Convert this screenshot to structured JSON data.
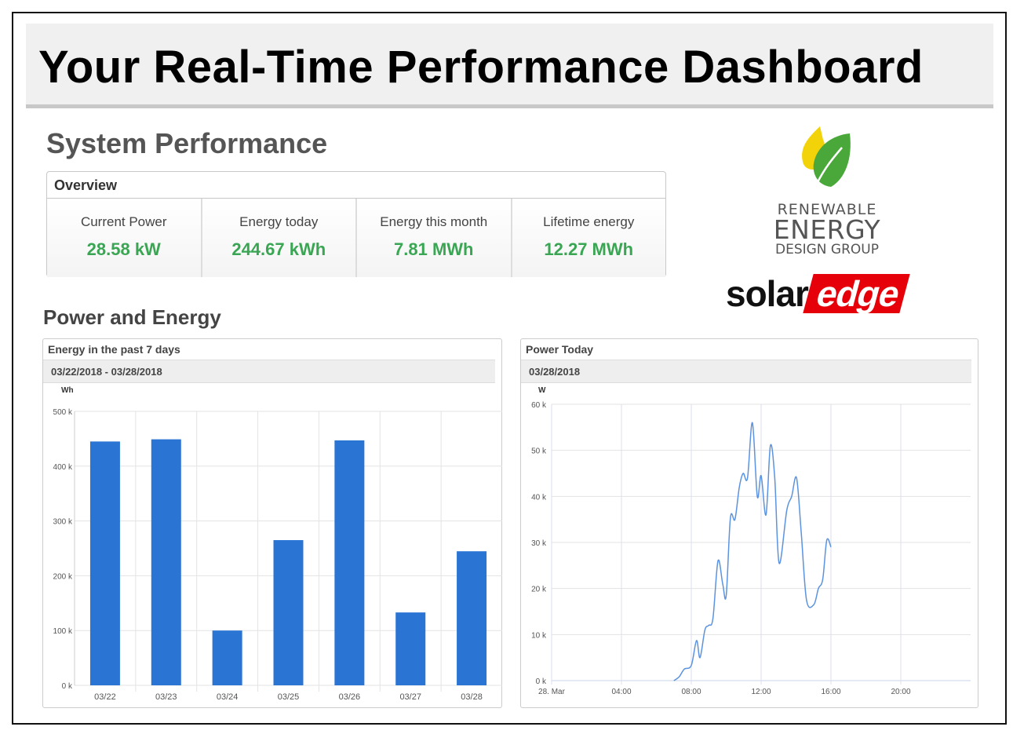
{
  "header": {
    "title": "Your Real-Time Performance Dashboard"
  },
  "section_title": "System Performance",
  "overview": {
    "title": "Overview",
    "tiles": [
      {
        "label": "Current Power",
        "value": "28.58 kW"
      },
      {
        "label": "Energy today",
        "value": "244.67 kWh"
      },
      {
        "label": "Energy this month",
        "value": "7.81 MWh"
      },
      {
        "label": "Lifetime energy",
        "value": "12.27 MWh"
      }
    ]
  },
  "logos": {
    "company": [
      "RENEWABLE",
      "ENERGY",
      "DESIGN GROUP"
    ],
    "solaredge": [
      "solar",
      "edge"
    ]
  },
  "power_energy_title": "Power and Energy",
  "colors": {
    "accent_green": "#3aa654",
    "bar_blue": "#2a74d4",
    "line_blue": "#5b93e0",
    "solaredge_red": "#e5000a"
  },
  "chart_data": [
    {
      "type": "bar",
      "title": "Energy in the past 7 days",
      "subtitle": "03/22/2018 - 03/28/2018",
      "ylabel": "Wh",
      "categories": [
        "03/22",
        "03/23",
        "03/24",
        "03/25",
        "03/26",
        "03/27",
        "03/28"
      ],
      "values": [
        445000,
        449000,
        100000,
        265000,
        447000,
        133000,
        244670
      ],
      "ylim": [
        0,
        500000
      ],
      "yticks": [
        "0 k",
        "100 k",
        "200 k",
        "300 k",
        "400 k",
        "500 k"
      ],
      "grid": true
    },
    {
      "type": "line",
      "title": "Power Today",
      "subtitle": "03/28/2018",
      "ylabel": "W",
      "xlabel_unit": "hour",
      "xlim": [
        0,
        24
      ],
      "ylim": [
        0,
        60000
      ],
      "xticks": [
        {
          "h": 0,
          "label": "28. Mar"
        },
        {
          "h": 4,
          "label": "04:00"
        },
        {
          "h": 8,
          "label": "08:00"
        },
        {
          "h": 12,
          "label": "12:00"
        },
        {
          "h": 16,
          "label": "16:00"
        },
        {
          "h": 20,
          "label": "20:00"
        }
      ],
      "yticks": [
        "0 k",
        "10 k",
        "20 k",
        "30 k",
        "40 k",
        "50 k",
        "60 k"
      ],
      "x": [
        7.0,
        7.3,
        7.6,
        8.0,
        8.3,
        8.5,
        8.78,
        9.0,
        9.24,
        9.53,
        9.8,
        10.0,
        10.24,
        10.5,
        10.75,
        10.97,
        11.22,
        11.5,
        11.78,
        12.0,
        12.28,
        12.53,
        12.78,
        13.03,
        13.47,
        13.75,
        14.03,
        14.3,
        14.6,
        15.02,
        15.28,
        15.53,
        15.76,
        16.0
      ],
      "y": [
        0,
        800,
        2500,
        3300,
        8700,
        5000,
        11000,
        12000,
        13500,
        26000,
        21000,
        18500,
        35300,
        35000,
        42000,
        45000,
        44000,
        56000,
        40000,
        44500,
        36000,
        51000,
        44000,
        25500,
        37000,
        40000,
        44000,
        32000,
        17500,
        16500,
        20000,
        22000,
        30500,
        29000
      ]
    }
  ]
}
